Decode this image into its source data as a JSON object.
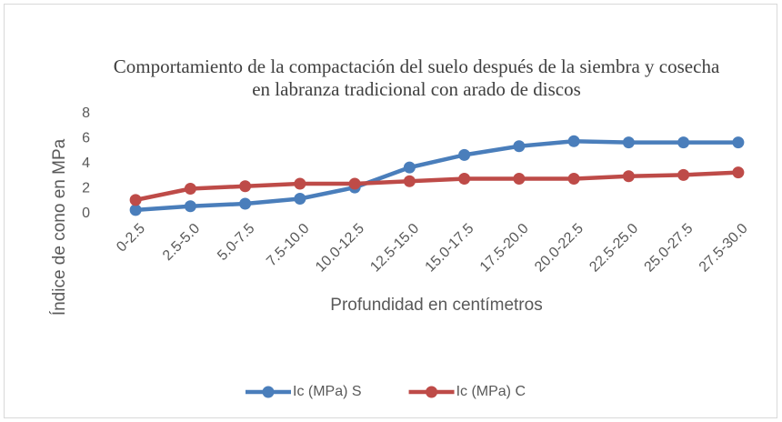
{
  "chart_data": {
    "type": "line",
    "title": "Comportamiento de la compactación del suelo después de la siembra y cosecha en labranza tradicional con arado de discos",
    "x_label": "Profundidad en centímetros",
    "y_label": "Índice de cono en MPa",
    "categories": [
      "0-2.5",
      "2.5-5.0",
      "5.0-7.5",
      "7.5-10.0",
      "10.0-12.5",
      "12.5-15.0",
      "15.0-17.5",
      "17.5-20.0",
      "20.0-22.5",
      "22.5-25.0",
      "25.0-27.5",
      "27.5-30.0"
    ],
    "series": [
      {
        "name": "Ic (MPa) S",
        "color": "#4a7ebb",
        "values": [
          0.3,
          0.6,
          0.8,
          1.2,
          2.1,
          3.7,
          4.7,
          5.4,
          5.8,
          5.7,
          5.7,
          5.7
        ]
      },
      {
        "name": "Ic (MPa) C",
        "color": "#be4b48",
        "values": [
          1.1,
          2.0,
          2.2,
          2.4,
          2.4,
          2.6,
          2.8,
          2.8,
          2.8,
          3.0,
          3.1,
          3.3
        ]
      }
    ],
    "ylim": [
      0,
      8
    ],
    "yticks": [
      0,
      2,
      4,
      6,
      8
    ],
    "grid": false,
    "legend": "bottom"
  }
}
